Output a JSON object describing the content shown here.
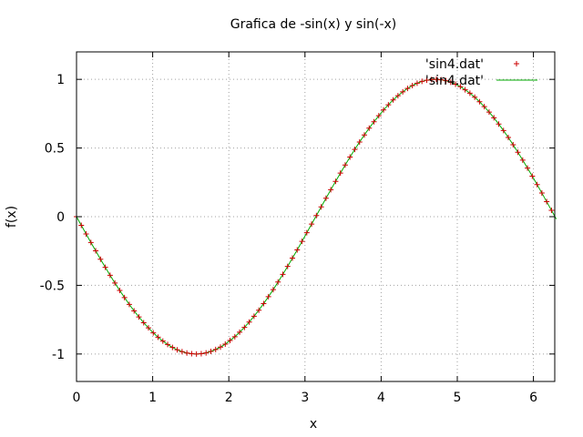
{
  "chart_data": {
    "type": "line",
    "title": "Grafica de -sin(x) y sin(-x)",
    "xlabel": "x",
    "ylabel": "f(x)",
    "xlim": [
      0,
      6.28
    ],
    "ylim": [
      -1.2,
      1.2
    ],
    "x_ticks": [
      {
        "value": 0,
        "label": "0"
      },
      {
        "value": 1,
        "label": "1"
      },
      {
        "value": 2,
        "label": "2"
      },
      {
        "value": 3,
        "label": "3"
      },
      {
        "value": 4,
        "label": "4"
      },
      {
        "value": 5,
        "label": "5"
      },
      {
        "value": 6,
        "label": "6"
      }
    ],
    "y_ticks": [
      {
        "value": -1,
        "label": "-1"
      },
      {
        "value": -0.5,
        "label": "-0.5"
      },
      {
        "value": 0,
        "label": "0"
      },
      {
        "value": 0.5,
        "label": "0.5"
      },
      {
        "value": 1,
        "label": "1"
      }
    ],
    "grid": true,
    "legend_position": "top-right",
    "x": [
      0.0,
      0.063,
      0.126,
      0.189,
      0.252,
      0.315,
      0.378,
      0.441,
      0.504,
      0.567,
      0.63,
      0.693,
      0.756,
      0.819,
      0.882,
      0.945,
      1.008,
      1.071,
      1.134,
      1.197,
      1.26,
      1.323,
      1.386,
      1.449,
      1.512,
      1.575,
      1.638,
      1.701,
      1.764,
      1.827,
      1.89,
      1.953,
      2.016,
      2.079,
      2.142,
      2.205,
      2.268,
      2.331,
      2.394,
      2.457,
      2.52,
      2.583,
      2.646,
      2.709,
      2.772,
      2.835,
      2.898,
      2.961,
      3.024,
      3.087,
      3.15,
      3.213,
      3.276,
      3.339,
      3.402,
      3.465,
      3.528,
      3.591,
      3.654,
      3.717,
      3.78,
      3.843,
      3.906,
      3.969,
      4.032,
      4.095,
      4.158,
      4.221,
      4.284,
      4.347,
      4.41,
      4.473,
      4.536,
      4.599,
      4.662,
      4.725,
      4.788,
      4.851,
      4.914,
      4.977,
      5.04,
      5.103,
      5.166,
      5.229,
      5.292,
      5.355,
      5.418,
      5.481,
      5.544,
      5.607,
      5.67,
      5.733,
      5.796,
      5.859,
      5.922,
      5.985,
      6.048,
      6.111,
      6.174,
      6.237,
      6.3
    ],
    "series": [
      {
        "name": "'sin4.dat'",
        "style": "points",
        "color": "#cc0000",
        "values": [
          0.0,
          -0.063,
          -0.126,
          -0.188,
          -0.249,
          -0.31,
          -0.369,
          -0.427,
          -0.483,
          -0.537,
          -0.589,
          -0.639,
          -0.686,
          -0.73,
          -0.772,
          -0.81,
          -0.846,
          -0.878,
          -0.906,
          -0.931,
          -0.952,
          -0.97,
          -0.983,
          -0.993,
          -0.998,
          -1.0,
          -0.998,
          -0.992,
          -0.981,
          -0.967,
          -0.95,
          -0.928,
          -0.902,
          -0.874,
          -0.841,
          -0.806,
          -0.767,
          -0.725,
          -0.681,
          -0.633,
          -0.583,
          -0.531,
          -0.476,
          -0.42,
          -0.362,
          -0.302,
          -0.242,
          -0.18,
          -0.117,
          -0.054,
          0.008,
          0.071,
          0.134,
          0.196,
          0.257,
          0.317,
          0.376,
          0.434,
          0.49,
          0.544,
          0.595,
          0.645,
          0.691,
          0.735,
          0.777,
          0.815,
          0.85,
          0.881,
          0.909,
          0.934,
          0.955,
          0.972,
          0.985,
          0.994,
          0.999,
          1.0,
          0.997,
          0.99,
          0.979,
          0.965,
          0.947,
          0.924,
          0.899,
          0.87,
          0.837,
          0.801,
          0.762,
          0.72,
          0.675,
          0.627,
          0.577,
          0.524,
          0.469,
          0.412,
          0.354,
          0.295,
          0.234,
          0.172,
          0.109,
          0.046,
          -0.017
        ]
      },
      {
        "name": "'sin4.dat'",
        "style": "line",
        "color": "#00aa00",
        "values": [
          0.0,
          -0.063,
          -0.126,
          -0.188,
          -0.249,
          -0.31,
          -0.369,
          -0.427,
          -0.483,
          -0.537,
          -0.589,
          -0.639,
          -0.686,
          -0.73,
          -0.772,
          -0.81,
          -0.846,
          -0.878,
          -0.906,
          -0.931,
          -0.952,
          -0.97,
          -0.983,
          -0.993,
          -0.998,
          -1.0,
          -0.998,
          -0.992,
          -0.981,
          -0.967,
          -0.95,
          -0.928,
          -0.902,
          -0.874,
          -0.841,
          -0.806,
          -0.767,
          -0.725,
          -0.681,
          -0.633,
          -0.583,
          -0.531,
          -0.476,
          -0.42,
          -0.362,
          -0.302,
          -0.242,
          -0.18,
          -0.117,
          -0.054,
          0.008,
          0.071,
          0.134,
          0.196,
          0.257,
          0.317,
          0.376,
          0.434,
          0.49,
          0.544,
          0.595,
          0.645,
          0.691,
          0.735,
          0.777,
          0.815,
          0.85,
          0.881,
          0.909,
          0.934,
          0.955,
          0.972,
          0.985,
          0.994,
          0.999,
          1.0,
          0.997,
          0.99,
          0.979,
          0.965,
          0.947,
          0.924,
          0.899,
          0.87,
          0.837,
          0.801,
          0.762,
          0.72,
          0.675,
          0.627,
          0.577,
          0.524,
          0.469,
          0.412,
          0.354,
          0.295,
          0.234,
          0.172,
          0.109,
          0.046,
          -0.017
        ]
      }
    ]
  }
}
